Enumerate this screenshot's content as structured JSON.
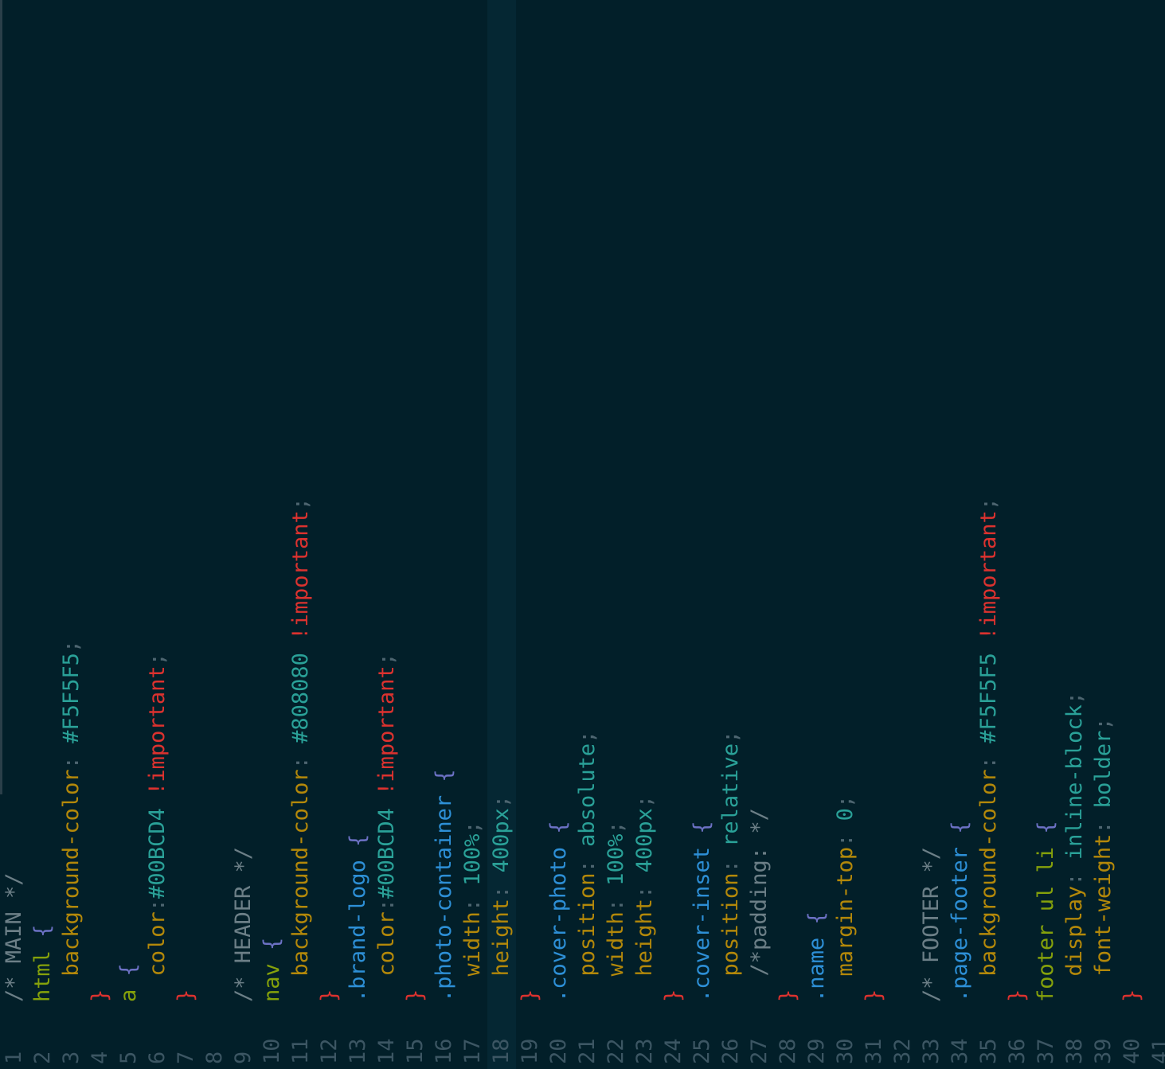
{
  "editor": {
    "language": "css",
    "active_line": 18,
    "partial_line_number": "41",
    "colors": {
      "background": "#021f29",
      "comment": "#6c7f87",
      "selector": "#85a10b",
      "class_selector": "#2d8fd6",
      "property": "#b3880a",
      "value": "#2aa198",
      "important": "#dc322f",
      "brace_open": "#6c71c4",
      "brace_close": "#dc322f"
    },
    "lines": [
      {
        "n": "1",
        "tokens": [
          {
            "t": "cm",
            "v": "/* MAIN */"
          }
        ]
      },
      {
        "n": "2",
        "tokens": [
          {
            "t": "sel",
            "v": "html"
          },
          {
            "t": "sp",
            "v": " "
          },
          {
            "t": "bo",
            "v": "{"
          }
        ]
      },
      {
        "n": "3",
        "tokens": [
          {
            "t": "sp",
            "v": "  "
          },
          {
            "t": "prop",
            "v": "background-color"
          },
          {
            "t": "pu",
            "v": ": "
          },
          {
            "t": "val",
            "v": "#F5F5F5"
          },
          {
            "t": "pu",
            "v": ";"
          }
        ]
      },
      {
        "n": "4",
        "tokens": [
          {
            "t": "bc",
            "v": "}"
          }
        ]
      },
      {
        "n": "5",
        "tokens": [
          {
            "t": "sel",
            "v": "a"
          },
          {
            "t": "sp",
            "v": " "
          },
          {
            "t": "bo",
            "v": "{"
          }
        ]
      },
      {
        "n": "6",
        "tokens": [
          {
            "t": "sp",
            "v": "  "
          },
          {
            "t": "prop",
            "v": "color"
          },
          {
            "t": "pu",
            "v": ":"
          },
          {
            "t": "val",
            "v": "#00BCD4"
          },
          {
            "t": "sp",
            "v": " "
          },
          {
            "t": "imp",
            "v": "!important"
          },
          {
            "t": "pu",
            "v": ";"
          }
        ]
      },
      {
        "n": "7",
        "tokens": [
          {
            "t": "bc",
            "v": "}"
          }
        ]
      },
      {
        "n": "8",
        "tokens": []
      },
      {
        "n": "9",
        "tokens": [
          {
            "t": "cm",
            "v": "/* HEADER */"
          }
        ]
      },
      {
        "n": "10",
        "tokens": [
          {
            "t": "sel",
            "v": "nav"
          },
          {
            "t": "sp",
            "v": " "
          },
          {
            "t": "bo",
            "v": "{"
          }
        ]
      },
      {
        "n": "11",
        "tokens": [
          {
            "t": "sp",
            "v": "  "
          },
          {
            "t": "prop",
            "v": "background-color"
          },
          {
            "t": "pu",
            "v": ": "
          },
          {
            "t": "val",
            "v": "#808080"
          },
          {
            "t": "sp",
            "v": " "
          },
          {
            "t": "imp",
            "v": "!important"
          },
          {
            "t": "pu",
            "v": ";"
          }
        ]
      },
      {
        "n": "12",
        "tokens": [
          {
            "t": "bc",
            "v": "}"
          }
        ]
      },
      {
        "n": "13",
        "tokens": [
          {
            "t": "cls",
            "v": ".brand-logo"
          },
          {
            "t": "sp",
            "v": " "
          },
          {
            "t": "bo",
            "v": "{"
          }
        ]
      },
      {
        "n": "14",
        "tokens": [
          {
            "t": "sp",
            "v": "  "
          },
          {
            "t": "prop",
            "v": "color"
          },
          {
            "t": "pu",
            "v": ":"
          },
          {
            "t": "val",
            "v": "#00BCD4"
          },
          {
            "t": "sp",
            "v": " "
          },
          {
            "t": "imp",
            "v": "!important"
          },
          {
            "t": "pu",
            "v": ";"
          }
        ]
      },
      {
        "n": "15",
        "tokens": [
          {
            "t": "bc",
            "v": "}"
          }
        ]
      },
      {
        "n": "16",
        "tokens": [
          {
            "t": "cls",
            "v": ".photo-container"
          },
          {
            "t": "sp",
            "v": " "
          },
          {
            "t": "bo",
            "v": "{"
          }
        ]
      },
      {
        "n": "17",
        "tokens": [
          {
            "t": "sp",
            "v": "  "
          },
          {
            "t": "prop",
            "v": "width"
          },
          {
            "t": "pu",
            "v": ": "
          },
          {
            "t": "val",
            "v": "100%"
          },
          {
            "t": "pu",
            "v": ";"
          }
        ]
      },
      {
        "n": "18",
        "tokens": [
          {
            "t": "sp",
            "v": "  "
          },
          {
            "t": "prop",
            "v": "height"
          },
          {
            "t": "pu",
            "v": ": "
          },
          {
            "t": "val",
            "v": "400px"
          },
          {
            "t": "pu",
            "v": ";"
          }
        ]
      },
      {
        "n": "19",
        "tokens": [
          {
            "t": "bc",
            "v": "}"
          }
        ]
      },
      {
        "n": "20",
        "tokens": [
          {
            "t": "cls",
            "v": ".cover-photo"
          },
          {
            "t": "sp",
            "v": " "
          },
          {
            "t": "bo",
            "v": "{"
          }
        ]
      },
      {
        "n": "21",
        "tokens": [
          {
            "t": "sp",
            "v": "  "
          },
          {
            "t": "prop",
            "v": "position"
          },
          {
            "t": "pu",
            "v": ": "
          },
          {
            "t": "val",
            "v": "absolute"
          },
          {
            "t": "pu",
            "v": ";"
          }
        ]
      },
      {
        "n": "22",
        "tokens": [
          {
            "t": "sp",
            "v": "  "
          },
          {
            "t": "prop",
            "v": "width"
          },
          {
            "t": "pu",
            "v": ": "
          },
          {
            "t": "val",
            "v": "100%"
          },
          {
            "t": "pu",
            "v": ";"
          }
        ]
      },
      {
        "n": "23",
        "tokens": [
          {
            "t": "sp",
            "v": "  "
          },
          {
            "t": "prop",
            "v": "height"
          },
          {
            "t": "pu",
            "v": ": "
          },
          {
            "t": "val",
            "v": "400px"
          },
          {
            "t": "pu",
            "v": ";"
          }
        ]
      },
      {
        "n": "24",
        "tokens": [
          {
            "t": "bc",
            "v": "}"
          }
        ]
      },
      {
        "n": "25",
        "tokens": [
          {
            "t": "cls",
            "v": ".cover-inset"
          },
          {
            "t": "sp",
            "v": " "
          },
          {
            "t": "bo",
            "v": "{"
          }
        ]
      },
      {
        "n": "26",
        "tokens": [
          {
            "t": "sp",
            "v": "  "
          },
          {
            "t": "prop",
            "v": "position"
          },
          {
            "t": "pu",
            "v": ": "
          },
          {
            "t": "val",
            "v": "relative"
          },
          {
            "t": "pu",
            "v": ";"
          }
        ]
      },
      {
        "n": "27",
        "tokens": [
          {
            "t": "sp",
            "v": "  "
          },
          {
            "t": "cm",
            "v": "/*padding: */"
          }
        ]
      },
      {
        "n": "28",
        "tokens": [
          {
            "t": "bc",
            "v": "}"
          }
        ]
      },
      {
        "n": "29",
        "tokens": [
          {
            "t": "cls",
            "v": ".name"
          },
          {
            "t": "sp",
            "v": " "
          },
          {
            "t": "bo",
            "v": "{"
          }
        ]
      },
      {
        "n": "30",
        "tokens": [
          {
            "t": "sp",
            "v": "  "
          },
          {
            "t": "prop",
            "v": "margin-top"
          },
          {
            "t": "pu",
            "v": ": "
          },
          {
            "t": "val",
            "v": "0"
          },
          {
            "t": "pu",
            "v": ";"
          }
        ]
      },
      {
        "n": "31",
        "tokens": [
          {
            "t": "bc",
            "v": "}"
          }
        ]
      },
      {
        "n": "32",
        "tokens": []
      },
      {
        "n": "33",
        "tokens": [
          {
            "t": "cm",
            "v": "/* FOOTER */"
          }
        ]
      },
      {
        "n": "34",
        "tokens": [
          {
            "t": "cls",
            "v": ".page-footer"
          },
          {
            "t": "sp",
            "v": " "
          },
          {
            "t": "bo",
            "v": "{"
          }
        ]
      },
      {
        "n": "35",
        "tokens": [
          {
            "t": "sp",
            "v": "  "
          },
          {
            "t": "prop",
            "v": "background-color"
          },
          {
            "t": "pu",
            "v": ": "
          },
          {
            "t": "val",
            "v": "#F5F5F5"
          },
          {
            "t": "sp",
            "v": " "
          },
          {
            "t": "imp",
            "v": "!important"
          },
          {
            "t": "pu",
            "v": ";"
          }
        ]
      },
      {
        "n": "36",
        "tokens": [
          {
            "t": "bc",
            "v": "}"
          }
        ]
      },
      {
        "n": "37",
        "tokens": [
          {
            "t": "sel",
            "v": "footer ul li"
          },
          {
            "t": "sp",
            "v": " "
          },
          {
            "t": "bo",
            "v": "{"
          }
        ]
      },
      {
        "n": "38",
        "tokens": [
          {
            "t": "sp",
            "v": "  "
          },
          {
            "t": "prop",
            "v": "display"
          },
          {
            "t": "pu",
            "v": ": "
          },
          {
            "t": "val",
            "v": "inline-block"
          },
          {
            "t": "pu",
            "v": ";"
          }
        ]
      },
      {
        "n": "39",
        "tokens": [
          {
            "t": "sp",
            "v": "  "
          },
          {
            "t": "prop",
            "v": "font-weight"
          },
          {
            "t": "pu",
            "v": ": "
          },
          {
            "t": "val",
            "v": "bolder"
          },
          {
            "t": "pu",
            "v": ";"
          }
        ]
      },
      {
        "n": "40",
        "tokens": [
          {
            "t": "bc",
            "v": "}"
          }
        ]
      }
    ]
  }
}
